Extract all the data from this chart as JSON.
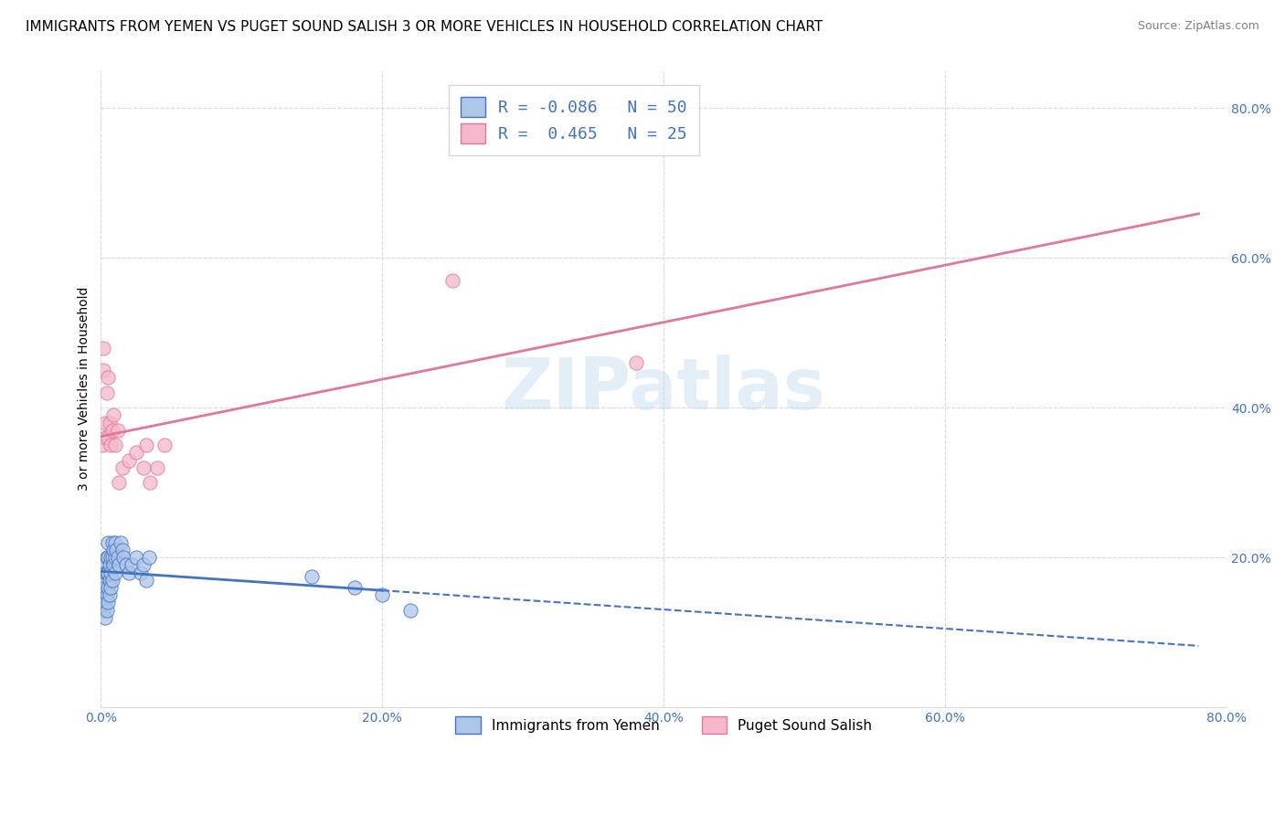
{
  "title": "IMMIGRANTS FROM YEMEN VS PUGET SOUND SALISH 3 OR MORE VEHICLES IN HOUSEHOLD CORRELATION CHART",
  "source": "Source: ZipAtlas.com",
  "ylabel": "3 or more Vehicles in Household",
  "xmin": 0.0,
  "xmax": 0.8,
  "ymin": 0.0,
  "ymax": 0.85,
  "xtick_labels": [
    "0.0%",
    "20.0%",
    "40.0%",
    "60.0%",
    "80.0%"
  ],
  "xtick_values": [
    0.0,
    0.2,
    0.4,
    0.6,
    0.8
  ],
  "ytick_labels": [
    "20.0%",
    "40.0%",
    "60.0%",
    "80.0%"
  ],
  "ytick_values": [
    0.2,
    0.4,
    0.6,
    0.8
  ],
  "blue_R": -0.086,
  "blue_N": 50,
  "pink_R": 0.465,
  "pink_N": 25,
  "blue_color": "#aec6e8",
  "pink_color": "#f5b8cb",
  "blue_line_color": "#4472C4",
  "pink_line_color": "#e07898",
  "legend_label_blue": "Immigrants from Yemen",
  "legend_label_pink": "Puget Sound Salish",
  "watermark": "ZIPatlas",
  "blue_scatter_x": [
    0.001,
    0.001,
    0.002,
    0.002,
    0.002,
    0.003,
    0.003,
    0.003,
    0.003,
    0.004,
    0.004,
    0.004,
    0.004,
    0.005,
    0.005,
    0.005,
    0.005,
    0.005,
    0.006,
    0.006,
    0.006,
    0.007,
    0.007,
    0.007,
    0.008,
    0.008,
    0.008,
    0.009,
    0.009,
    0.01,
    0.01,
    0.01,
    0.011,
    0.012,
    0.013,
    0.014,
    0.015,
    0.016,
    0.018,
    0.02,
    0.022,
    0.025,
    0.028,
    0.03,
    0.032,
    0.034,
    0.15,
    0.18,
    0.2,
    0.22
  ],
  "blue_scatter_y": [
    0.17,
    0.14,
    0.19,
    0.15,
    0.13,
    0.18,
    0.16,
    0.14,
    0.12,
    0.2,
    0.18,
    0.15,
    0.13,
    0.22,
    0.2,
    0.18,
    0.16,
    0.14,
    0.19,
    0.17,
    0.15,
    0.2,
    0.18,
    0.16,
    0.22,
    0.2,
    0.17,
    0.21,
    0.19,
    0.22,
    0.2,
    0.18,
    0.21,
    0.2,
    0.19,
    0.22,
    0.21,
    0.2,
    0.19,
    0.18,
    0.19,
    0.2,
    0.18,
    0.19,
    0.17,
    0.2,
    0.175,
    0.16,
    0.15,
    0.13
  ],
  "pink_scatter_x": [
    0.001,
    0.002,
    0.002,
    0.003,
    0.003,
    0.004,
    0.005,
    0.005,
    0.006,
    0.007,
    0.008,
    0.009,
    0.01,
    0.012,
    0.013,
    0.015,
    0.02,
    0.025,
    0.03,
    0.032,
    0.035,
    0.04,
    0.045,
    0.25,
    0.38
  ],
  "pink_scatter_y": [
    0.35,
    0.45,
    0.48,
    0.36,
    0.38,
    0.42,
    0.44,
    0.36,
    0.38,
    0.35,
    0.37,
    0.39,
    0.35,
    0.37,
    0.3,
    0.32,
    0.33,
    0.34,
    0.32,
    0.35,
    0.3,
    0.32,
    0.35,
    0.57,
    0.46
  ],
  "background_color": "#ffffff",
  "grid_color": "#d0d0d0",
  "title_fontsize": 11,
  "axis_label_fontsize": 10,
  "tick_fontsize": 10
}
